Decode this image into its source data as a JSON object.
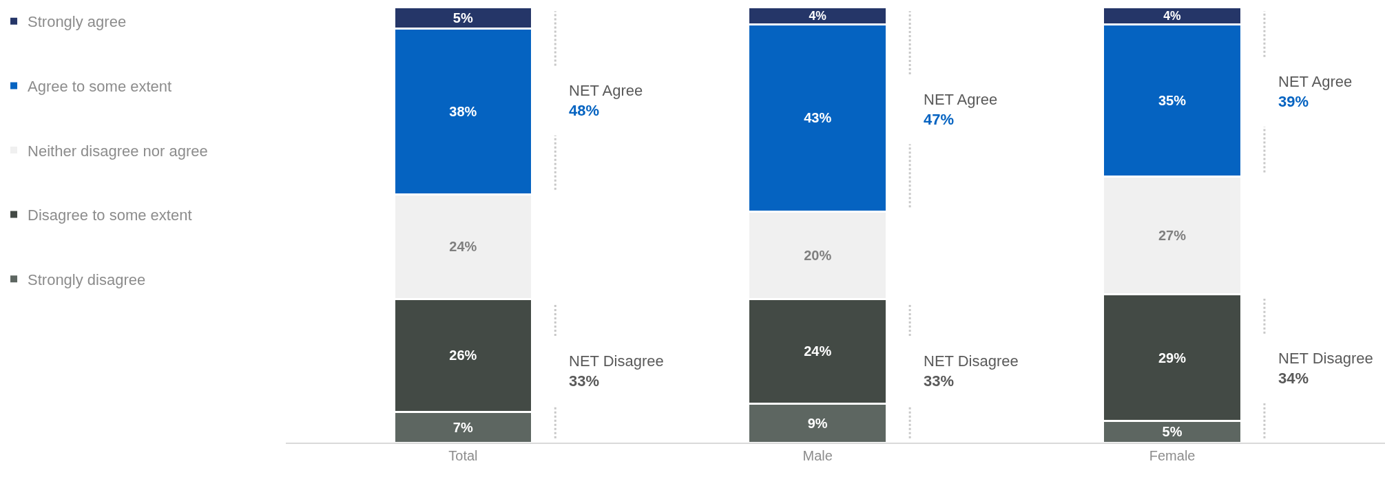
{
  "chart_data": {
    "type": "bar",
    "stacked": true,
    "legend": "left",
    "categories": [
      "Total",
      "Male",
      "Female"
    ],
    "series": [
      {
        "name": "Strongly disagree",
        "color": "#5d6661",
        "values": [
          7,
          9,
          5
        ],
        "value_labels": [
          "7%",
          "9%",
          "5%"
        ]
      },
      {
        "name": "Disagree to some extent",
        "color": "#434a45",
        "values": [
          26,
          24,
          29
        ],
        "value_labels": [
          "26%",
          "24%",
          "29%"
        ]
      },
      {
        "name": "Neither disagree nor agree",
        "color": "#f0f0f0",
        "values": [
          24,
          20,
          27
        ],
        "value_labels": [
          "24%",
          "20%",
          "27%"
        ]
      },
      {
        "name": "Agree to some extent",
        "color": "#0563c1",
        "values": [
          38,
          43,
          35
        ],
        "value_labels": [
          "38%",
          "43%",
          "35%"
        ]
      },
      {
        "name": "Strongly agree",
        "color": "#253668",
        "values": [
          5,
          4,
          4
        ],
        "value_labels": [
          "5%",
          "4%",
          "4%"
        ]
      }
    ],
    "annotations": [
      "NET Agree\n48%",
      "NET Disagree\n33%",
      "NET Agree\n47%",
      "NET Disagree\n33%",
      "NET Agree\n39%",
      "NET Disagree\n34%"
    ]
  }
}
